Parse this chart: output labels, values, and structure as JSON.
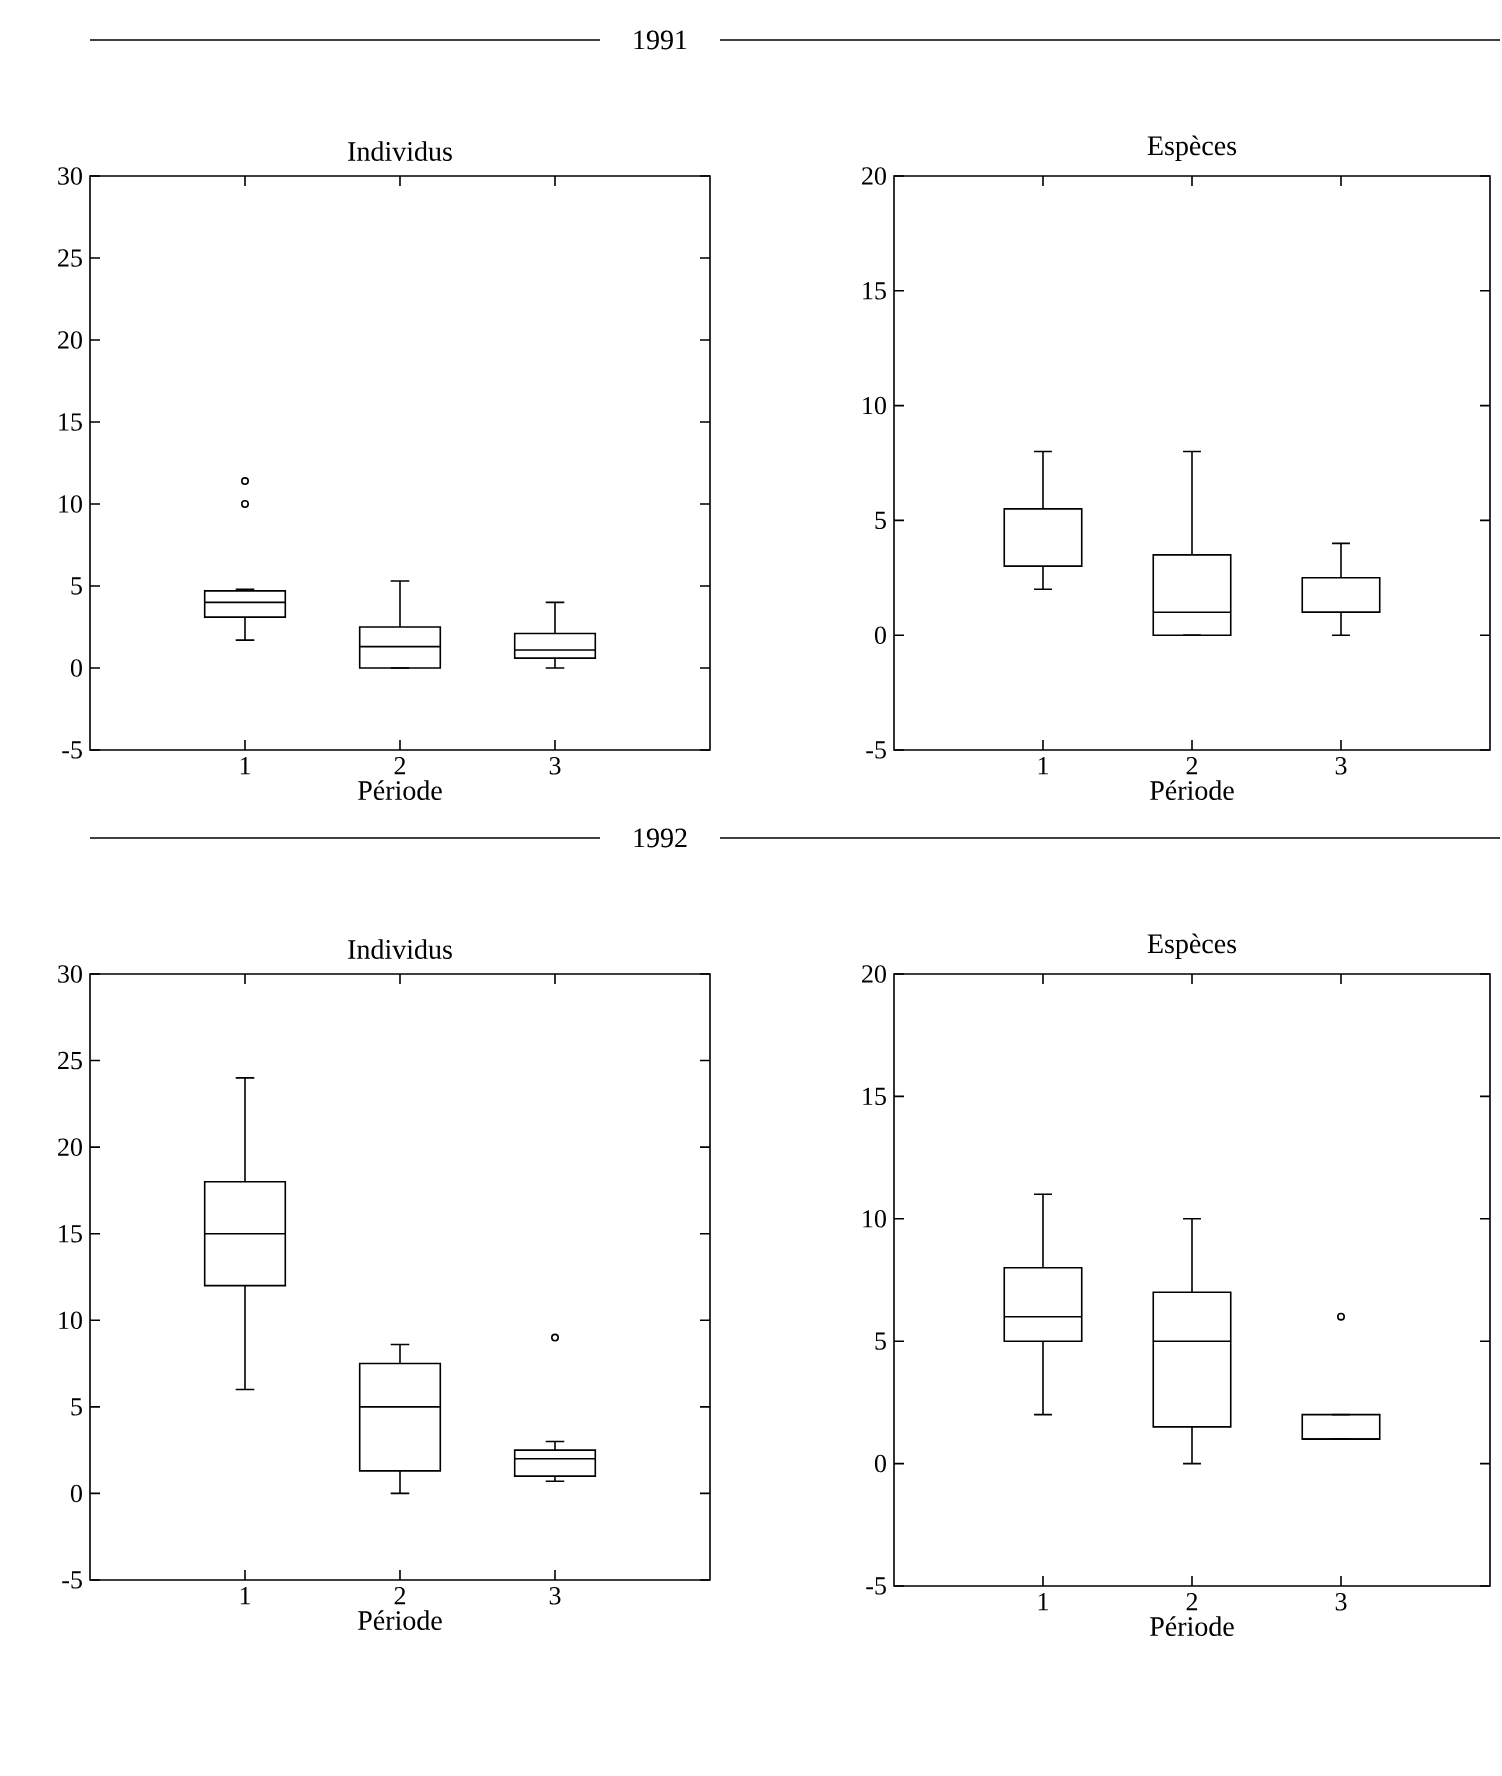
{
  "chart_data": [
    {
      "type": "box",
      "subtitle": "1991",
      "title": "Individus",
      "xlabel": "Période",
      "categories": [
        "1",
        "2",
        "3"
      ],
      "ylim": [
        -5,
        30
      ],
      "yticks": [
        -5,
        0,
        5,
        10,
        15,
        20,
        25,
        30
      ],
      "boxes": [
        {
          "low": 1.7,
          "q1": 3.1,
          "median": 4,
          "q3": 4.7,
          "high": 4.8,
          "outliers": [
            10,
            11.4
          ]
        },
        {
          "low": 0,
          "q1": 0,
          "median": 1.3,
          "q3": 2.5,
          "high": 5.3
        },
        {
          "low": 0,
          "q1": 0.6,
          "median": 1.1,
          "q3": 2.1,
          "high": 4
        }
      ]
    },
    {
      "type": "box",
      "title": "Espèces",
      "xlabel": "Période",
      "categories": [
        "1",
        "2",
        "3"
      ],
      "ylim": [
        -5,
        20
      ],
      "yticks": [
        -5,
        0,
        5,
        10,
        15,
        20
      ],
      "boxes": [
        {
          "low": 2,
          "q1": 3,
          "median": 3,
          "q3": 5.5,
          "high": 8
        },
        {
          "low": 0,
          "q1": 0,
          "median": 1,
          "q3": 3.5,
          "high": 8
        },
        {
          "low": 0,
          "q1": 1,
          "median": 1,
          "q3": 2.5,
          "high": 4
        }
      ]
    },
    {
      "type": "box",
      "subtitle": "1992",
      "title": "Individus",
      "xlabel": "Période",
      "categories": [
        "1",
        "2",
        "3"
      ],
      "ylim": [
        -5,
        30
      ],
      "yticks": [
        -5,
        0,
        5,
        10,
        15,
        20,
        25,
        30
      ],
      "boxes": [
        {
          "low": 6,
          "q1": 12,
          "median": 15,
          "q3": 18,
          "high": 24
        },
        {
          "low": 0,
          "q1": 1.3,
          "median": 5,
          "q3": 7.5,
          "high": 8.6
        },
        {
          "low": 0.7,
          "q1": 1,
          "median": 2,
          "q3": 2.5,
          "high": 3,
          "outliers": [
            9
          ]
        }
      ]
    },
    {
      "type": "box",
      "title": "Espèces",
      "xlabel": "Période",
      "categories": [
        "1",
        "2",
        "3"
      ],
      "ylim": [
        -5,
        20
      ],
      "yticks": [
        -5,
        0,
        5,
        10,
        15,
        20
      ],
      "boxes": [
        {
          "low": 2,
          "q1": 5,
          "median": 6,
          "q3": 8,
          "high": 11
        },
        {
          "low": 0,
          "q1": 1.5,
          "median": 5,
          "q3": 7,
          "high": 10
        },
        {
          "low": 1,
          "q1": 1,
          "median": 1,
          "q3": 2,
          "high": 2,
          "outliers": [
            6
          ]
        }
      ]
    }
  ]
}
